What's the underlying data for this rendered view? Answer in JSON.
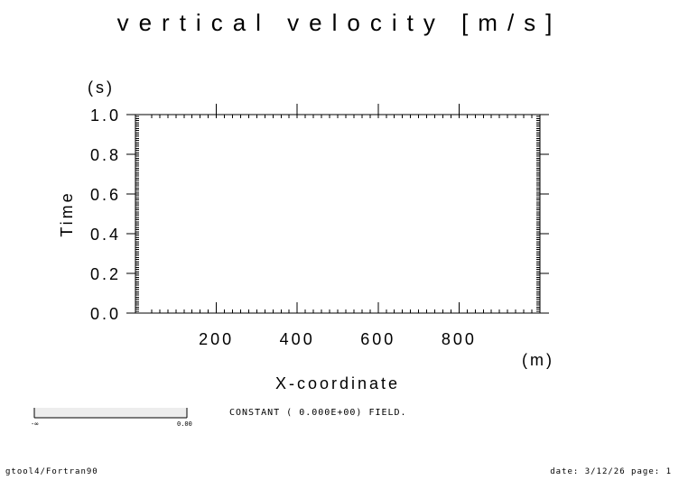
{
  "chart_data": {
    "type": "heatmap",
    "title": "vertical velocity [m/s]",
    "xlabel": "X-coordinate",
    "xunit": "(m)",
    "ylabel": "Time",
    "yunit": "(s)",
    "xlim": [
      0,
      1000
    ],
    "ylim": [
      0.0,
      1.0
    ],
    "x_ticks": [
      200,
      400,
      600,
      800
    ],
    "x_tick_labels": [
      "200",
      "400",
      "600",
      "800"
    ],
    "y_ticks": [
      0.0,
      0.2,
      0.4,
      0.6,
      0.8,
      1.0
    ],
    "y_tick_labels": [
      "0.0",
      "0.2",
      "0.4",
      "0.6",
      "0.8",
      "1.0"
    ],
    "field_value": 0.0,
    "annotation": "CONSTANT ( 0.000E+00) FIELD.",
    "colorbar": {
      "min_label": "-∞",
      "max_label": "0.00"
    }
  },
  "footer": {
    "left": "gtool4/Fortran90",
    "right": "date: 3/12/26 page: 1"
  }
}
